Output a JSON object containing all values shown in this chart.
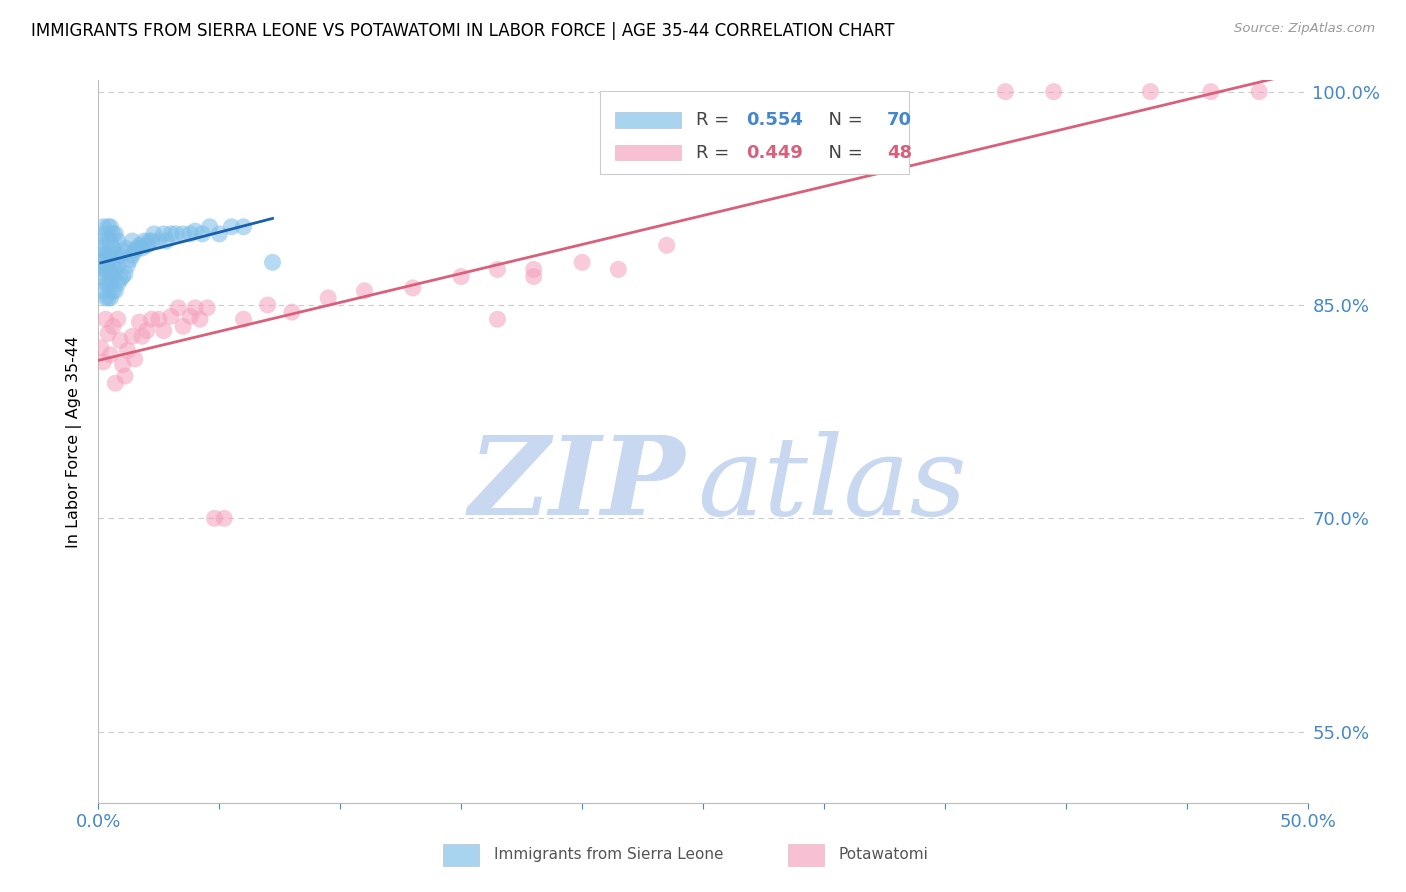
{
  "title": "IMMIGRANTS FROM SIERRA LEONE VS POTAWATOMI IN LABOR FORCE | AGE 35-44 CORRELATION CHART",
  "source": "Source: ZipAtlas.com",
  "ylabel": "In Labor Force | Age 35-44",
  "xlim": [
    0.0,
    0.5
  ],
  "ylim": [
    0.5,
    1.008
  ],
  "yticks": [
    0.55,
    0.7,
    0.85,
    1.0
  ],
  "ytick_labels": [
    "55.0%",
    "70.0%",
    "85.0%",
    "100.0%"
  ],
  "blue_R": 0.554,
  "blue_N": 70,
  "pink_R": 0.449,
  "pink_N": 48,
  "blue_color": "#7bbde8",
  "pink_color": "#f4a0bc",
  "blue_line_color": "#1a5fa8",
  "pink_line_color": "#d9607a",
  "axis_color": "#4488cc",
  "watermark_zip": "ZIP",
  "watermark_atlas": "atlas",
  "watermark_color": "#c8d8f0",
  "title_fontsize": 12.5,
  "blue_scatter_x": [
    0.001,
    0.001,
    0.001,
    0.002,
    0.002,
    0.002,
    0.002,
    0.002,
    0.003,
    0.003,
    0.003,
    0.003,
    0.003,
    0.004,
    0.004,
    0.004,
    0.004,
    0.004,
    0.004,
    0.005,
    0.005,
    0.005,
    0.005,
    0.005,
    0.005,
    0.006,
    0.006,
    0.006,
    0.006,
    0.006,
    0.007,
    0.007,
    0.007,
    0.007,
    0.008,
    0.008,
    0.008,
    0.009,
    0.009,
    0.01,
    0.01,
    0.011,
    0.011,
    0.012,
    0.013,
    0.014,
    0.014,
    0.015,
    0.016,
    0.017,
    0.018,
    0.019,
    0.02,
    0.021,
    0.022,
    0.023,
    0.025,
    0.027,
    0.028,
    0.03,
    0.032,
    0.035,
    0.038,
    0.04,
    0.043,
    0.046,
    0.05,
    0.055,
    0.06,
    0.072
  ],
  "blue_scatter_y": [
    0.87,
    0.88,
    0.89,
    0.86,
    0.875,
    0.885,
    0.895,
    0.905,
    0.855,
    0.865,
    0.875,
    0.885,
    0.9,
    0.855,
    0.865,
    0.875,
    0.885,
    0.895,
    0.905,
    0.855,
    0.865,
    0.875,
    0.885,
    0.895,
    0.905,
    0.86,
    0.87,
    0.88,
    0.89,
    0.9,
    0.86,
    0.875,
    0.885,
    0.9,
    0.865,
    0.878,
    0.895,
    0.868,
    0.885,
    0.87,
    0.888,
    0.872,
    0.89,
    0.878,
    0.882,
    0.885,
    0.895,
    0.888,
    0.89,
    0.892,
    0.89,
    0.895,
    0.892,
    0.895,
    0.895,
    0.9,
    0.895,
    0.9,
    0.895,
    0.9,
    0.9,
    0.9,
    0.9,
    0.902,
    0.9,
    0.905,
    0.9,
    0.905,
    0.905,
    0.88
  ],
  "pink_scatter_x": [
    0.001,
    0.002,
    0.003,
    0.004,
    0.005,
    0.006,
    0.007,
    0.008,
    0.009,
    0.01,
    0.011,
    0.012,
    0.014,
    0.015,
    0.017,
    0.018,
    0.02,
    0.022,
    0.025,
    0.027,
    0.03,
    0.033,
    0.035,
    0.038,
    0.04,
    0.042,
    0.045,
    0.048,
    0.052,
    0.06,
    0.07,
    0.08,
    0.095,
    0.11,
    0.13,
    0.15,
    0.165,
    0.18,
    0.2,
    0.215,
    0.235,
    0.165,
    0.18,
    0.375,
    0.395,
    0.435,
    0.46,
    0.48
  ],
  "pink_scatter_y": [
    0.82,
    0.81,
    0.84,
    0.83,
    0.815,
    0.835,
    0.795,
    0.84,
    0.825,
    0.808,
    0.8,
    0.818,
    0.828,
    0.812,
    0.838,
    0.828,
    0.832,
    0.84,
    0.84,
    0.832,
    0.842,
    0.848,
    0.835,
    0.842,
    0.848,
    0.84,
    0.848,
    0.7,
    0.7,
    0.84,
    0.85,
    0.845,
    0.855,
    0.86,
    0.862,
    0.87,
    0.875,
    0.87,
    0.88,
    0.875,
    0.892,
    0.84,
    0.875,
    1.0,
    1.0,
    1.0,
    1.0,
    1.0
  ]
}
